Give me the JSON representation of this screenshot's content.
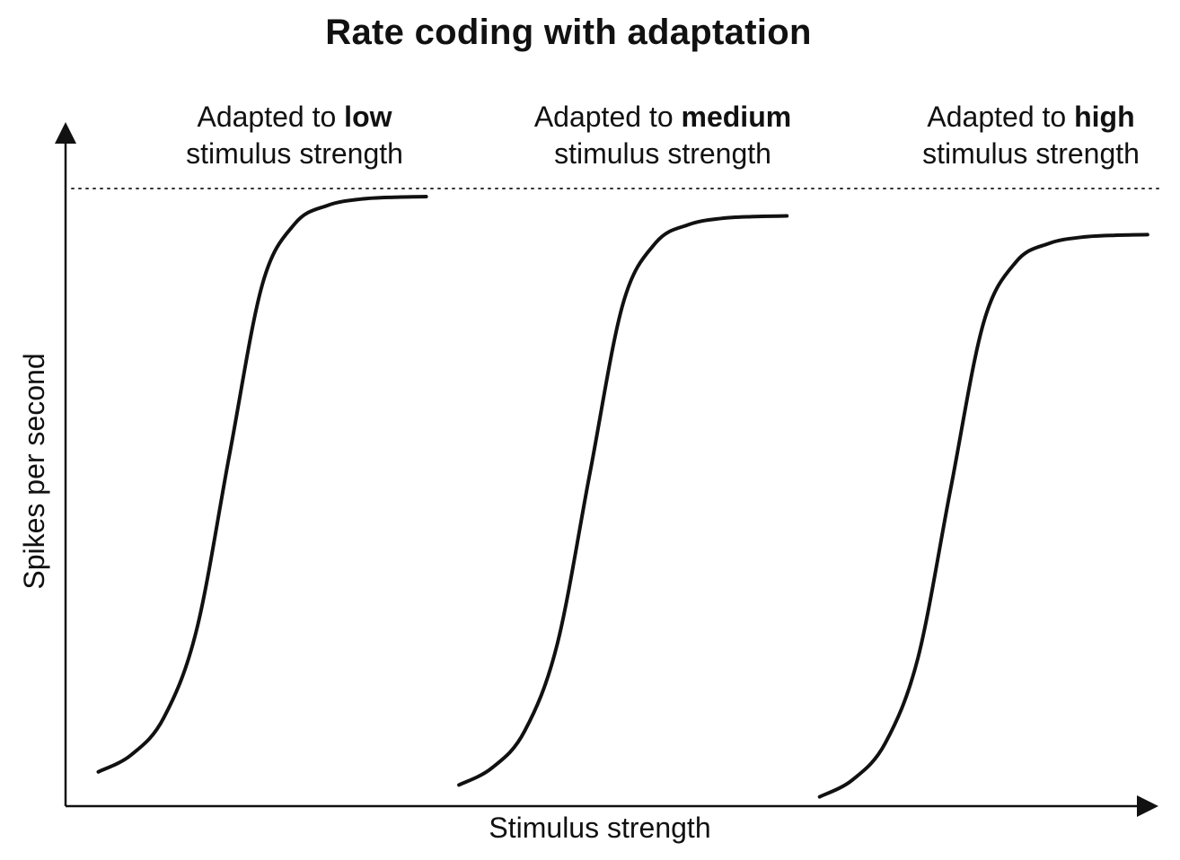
{
  "chart_data": {
    "type": "line",
    "title": "Rate coding with adaptation",
    "xlabel": "Stimulus strength",
    "ylabel": "Spikes per second",
    "xlim": [
      0,
      100
    ],
    "ylim": [
      0,
      100
    ],
    "grid": false,
    "axis_ticks": false,
    "reference_lines": [
      {
        "name": "maximum firing rate",
        "orientation": "horizontal",
        "y": 99,
        "style": "dotted"
      }
    ],
    "series": [
      {
        "name": "low",
        "label": {
          "prefix": "Adapted to ",
          "emphasis": "low",
          "line2": "stimulus strength"
        },
        "curve": "sigmoid",
        "x": [
          3,
          6,
          9,
          12,
          15,
          18,
          21,
          24,
          27,
          30,
          33
        ],
        "y": [
          5.5,
          8.2,
          14.2,
          28.3,
          56.3,
          83.6,
          93.4,
          96.3,
          97.3,
          97.6,
          97.7
        ]
      },
      {
        "name": "medium",
        "label": {
          "prefix": "Adapted to ",
          "emphasis": "medium",
          "line2": "stimulus strength"
        },
        "curve": "sigmoid",
        "x": [
          36,
          39,
          42,
          45,
          48,
          51,
          54,
          57,
          60,
          63,
          66
        ],
        "y": [
          3.4,
          6.1,
          12.0,
          26.0,
          53.6,
          80.5,
          90.3,
          93.2,
          94.2,
          94.5,
          94.6
        ]
      },
      {
        "name": "high",
        "label": {
          "prefix": "Adapted to ",
          "emphasis": "high",
          "line2": "stimulus strength"
        },
        "curve": "sigmoid",
        "x": [
          69,
          72,
          75,
          78,
          81,
          84,
          87,
          90,
          93,
          96,
          99
        ],
        "y": [
          1.5,
          4.2,
          10.1,
          23.8,
          51.0,
          77.5,
          87.3,
          90.2,
          91.2,
          91.5,
          91.6
        ]
      }
    ]
  }
}
